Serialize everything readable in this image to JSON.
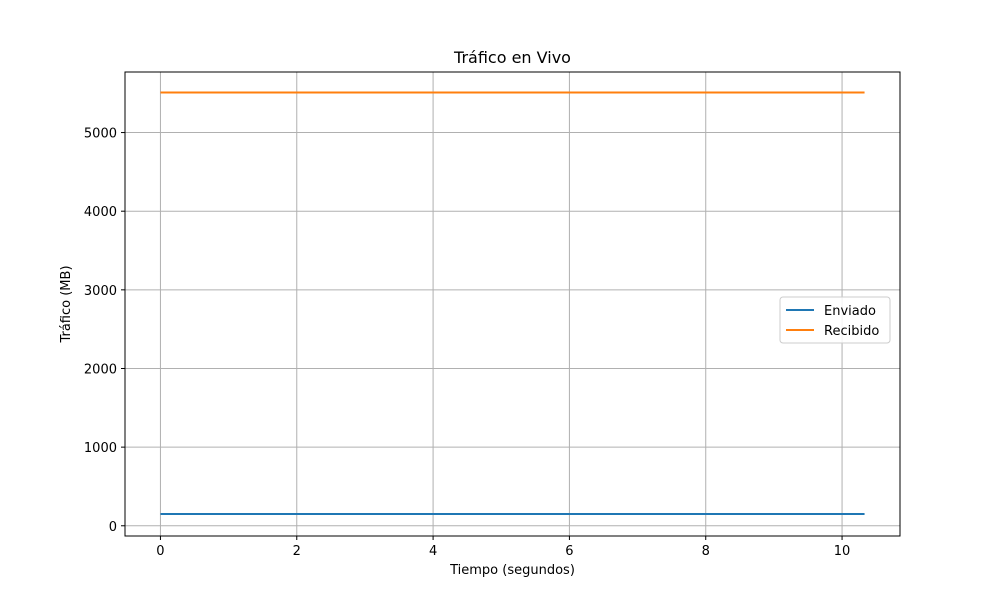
{
  "chart_data": {
    "type": "line",
    "title": "Tráfico en Vivo",
    "xlabel": "Tiempo (segundos)",
    "ylabel": "Tráfico (MB)",
    "xlim": [
      -0.52,
      10.85
    ],
    "ylim": [
      -130,
      5770
    ],
    "xticks": [
      0,
      2,
      4,
      6,
      8,
      10
    ],
    "yticks": [
      0,
      1000,
      2000,
      3000,
      4000,
      5000
    ],
    "grid": true,
    "legend_position": "center-right",
    "series": [
      {
        "name": "Enviado",
        "color": "#1f77b4",
        "x": [
          0,
          10.33
        ],
        "y": [
          150,
          150
        ]
      },
      {
        "name": "Recibido",
        "color": "#ff7f0e",
        "x": [
          0,
          10.33
        ],
        "y": [
          5510,
          5510
        ]
      }
    ]
  }
}
